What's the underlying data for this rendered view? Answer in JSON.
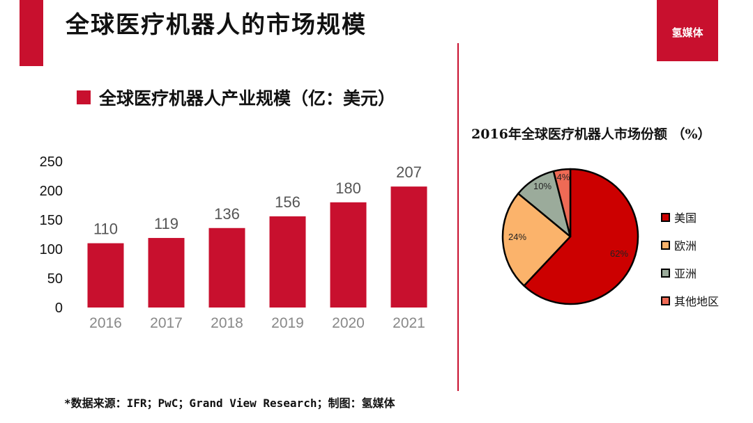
{
  "header": {
    "title": "全球医疗机器人的市场规模",
    "logo_text": "氢媒体"
  },
  "bar_section": {
    "heading": "全球医疗机器人产业规模（亿：美元）"
  },
  "pie_section": {
    "heading": "2016年全球医疗机器人市场份额 （%）"
  },
  "footer": {
    "source": "*数据来源：IFR；PwC；Grand View Research；制图：氢媒体"
  },
  "colors": {
    "accent": "#c8102e",
    "usa": "#cc0000",
    "europe": "#fbb36b",
    "asia": "#9bab9b",
    "other": "#ef6a55"
  },
  "chart_data": [
    {
      "type": "bar",
      "title": "全球医疗机器人产业规模（亿：美元）",
      "categories": [
        "2016",
        "2017",
        "2018",
        "2019",
        "2020",
        "2021"
      ],
      "values": [
        110,
        119,
        136,
        156,
        180,
        207
      ],
      "value_labels": [
        "110",
        "119",
        "136",
        "156",
        "180",
        "207"
      ],
      "yticks": [
        "0",
        "50",
        "100",
        "150",
        "200",
        "250"
      ],
      "ylim": [
        0,
        250
      ],
      "grid": false
    },
    {
      "type": "pie",
      "title": "2016年全球医疗机器人市场份额 （%）",
      "slices": [
        {
          "label": "美国",
          "value": 62,
          "value_label": "62%",
          "color": "#cc0000"
        },
        {
          "label": "欧洲",
          "value": 24,
          "value_label": "24%",
          "color": "#fbb36b"
        },
        {
          "label": "亚洲",
          "value": 10,
          "value_label": "10%",
          "color": "#9bab9b"
        },
        {
          "label": "其他地区",
          "value": 4,
          "value_label": "4%",
          "color": "#ef6a55"
        }
      ],
      "legend": "right"
    }
  ]
}
